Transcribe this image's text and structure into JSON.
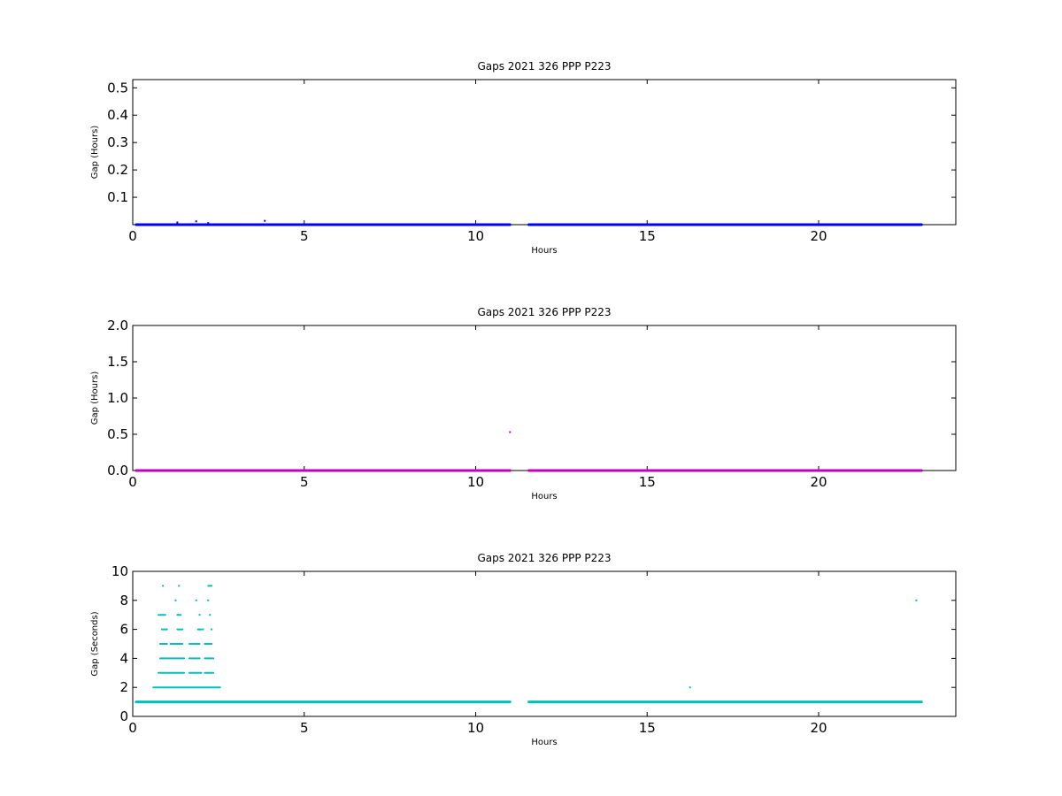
{
  "chart_data": [
    {
      "type": "scatter",
      "title": "Gaps 2021 326 PPP  P223",
      "xlabel": "Hours",
      "ylabel": "Gap (Hours)",
      "xlim": [
        0,
        24
      ],
      "ylim": [
        0,
        0.53
      ],
      "xticks": [
        0,
        5,
        10,
        15,
        20
      ],
      "xtick_labels": [
        "0",
        "5",
        "10",
        "15",
        "20"
      ],
      "yticks": [
        0.1,
        0.2,
        0.3,
        0.4,
        0.5
      ],
      "ytick_labels": [
        "0.1",
        "0.2",
        "0.3",
        "0.4",
        "0.5"
      ],
      "grid": false,
      "color": "#0000ff",
      "segments": [
        {
          "x_start": 0.1,
          "x_end": 11.0,
          "y": 0.0
        },
        {
          "x_start": 11.55,
          "x_end": 23.0,
          "y": 0.0
        }
      ],
      "points": [
        {
          "x": 1.3,
          "y": 0.008
        },
        {
          "x": 1.85,
          "y": 0.012
        },
        {
          "x": 2.2,
          "y": 0.006
        },
        {
          "x": 3.85,
          "y": 0.014
        }
      ]
    },
    {
      "type": "scatter",
      "title": "Gaps 2021 326 PPP  P223",
      "xlabel": "Hours",
      "ylabel": "Gap (Hours)",
      "xlim": [
        0,
        24
      ],
      "ylim": [
        0,
        2.0
      ],
      "xticks": [
        0,
        5,
        10,
        15,
        20
      ],
      "xtick_labels": [
        "0",
        "5",
        "10",
        "15",
        "20"
      ],
      "yticks": [
        0.0,
        0.5,
        1.0,
        1.5,
        2.0
      ],
      "ytick_labels": [
        "0.0",
        "0.5",
        "1.0",
        "1.5",
        "2.0"
      ],
      "grid": false,
      "color": "#bf00bf",
      "segments": [
        {
          "x_start": 0.1,
          "x_end": 11.0,
          "y": 0.0
        },
        {
          "x_start": 11.55,
          "x_end": 23.0,
          "y": 0.0
        }
      ],
      "points": [
        {
          "x": 11.0,
          "y": 0.53
        }
      ]
    },
    {
      "type": "scatter",
      "title": "Gaps 2021 326 PPP  P223",
      "xlabel": "Hours",
      "ylabel": "Gap (Seconds)",
      "xlim": [
        0,
        24
      ],
      "ylim": [
        0,
        10
      ],
      "xticks": [
        0,
        5,
        10,
        15,
        20
      ],
      "xtick_labels": [
        "0",
        "5",
        "10",
        "15",
        "20"
      ],
      "yticks": [
        0,
        2,
        4,
        6,
        8,
        10
      ],
      "ytick_labels": [
        "0",
        "2",
        "4",
        "6",
        "8",
        "10"
      ],
      "grid": false,
      "color": "#00bfbf",
      "segments": [
        {
          "x_start": 0.1,
          "x_end": 11.0,
          "y": 1
        },
        {
          "x_start": 11.55,
          "x_end": 23.0,
          "y": 1
        },
        {
          "x_start": 0.6,
          "x_end": 2.55,
          "y": 2
        },
        {
          "x_start": 0.75,
          "x_end": 1.5,
          "y": 3
        },
        {
          "x_start": 1.65,
          "x_end": 2.0,
          "y": 3
        },
        {
          "x_start": 2.1,
          "x_end": 2.35,
          "y": 3
        },
        {
          "x_start": 0.8,
          "x_end": 1.5,
          "y": 4
        },
        {
          "x_start": 1.65,
          "x_end": 1.95,
          "y": 4
        },
        {
          "x_start": 2.1,
          "x_end": 2.35,
          "y": 4
        },
        {
          "x_start": 0.8,
          "x_end": 1.0,
          "y": 5
        },
        {
          "x_start": 1.1,
          "x_end": 1.45,
          "y": 5
        },
        {
          "x_start": 1.65,
          "x_end": 1.95,
          "y": 5
        },
        {
          "x_start": 2.1,
          "x_end": 2.3,
          "y": 5
        },
        {
          "x_start": 0.85,
          "x_end": 1.0,
          "y": 6
        },
        {
          "x_start": 1.3,
          "x_end": 1.45,
          "y": 6
        },
        {
          "x_start": 1.9,
          "x_end": 2.0,
          "y": 6
        },
        {
          "x_start": 0.75,
          "x_end": 0.95,
          "y": 7
        },
        {
          "x_start": 1.3,
          "x_end": 1.4,
          "y": 7
        },
        {
          "x_start": 2.2,
          "x_end": 2.3,
          "y": 9
        }
      ],
      "points": [
        {
          "x": 1.95,
          "y": 7
        },
        {
          "x": 2.25,
          "y": 7
        },
        {
          "x": 1.25,
          "y": 8
        },
        {
          "x": 1.85,
          "y": 8
        },
        {
          "x": 2.2,
          "y": 8
        },
        {
          "x": 0.88,
          "y": 9
        },
        {
          "x": 1.35,
          "y": 9
        },
        {
          "x": 2.05,
          "y": 6
        },
        {
          "x": 2.3,
          "y": 6
        },
        {
          "x": 1.75,
          "y": 5
        },
        {
          "x": 16.25,
          "y": 2
        },
        {
          "x": 22.85,
          "y": 8
        }
      ]
    }
  ]
}
